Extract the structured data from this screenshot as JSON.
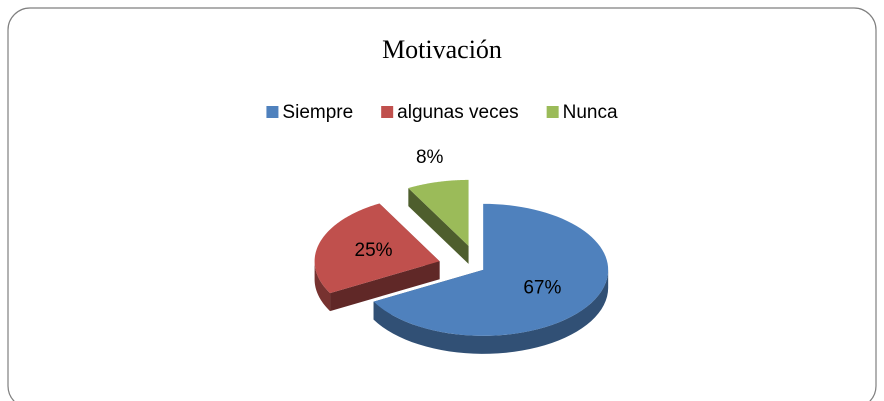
{
  "chart_data": {
    "type": "pie",
    "title": "Motivación",
    "categories": [
      "Siempre",
      "algunas veces",
      "Nunca"
    ],
    "values": [
      67,
      25,
      8
    ],
    "value_labels": [
      "67%",
      "25%",
      "8%"
    ],
    "colors": [
      "#4f81bd",
      "#c0504d",
      "#9bbb59"
    ],
    "legend": "top"
  }
}
